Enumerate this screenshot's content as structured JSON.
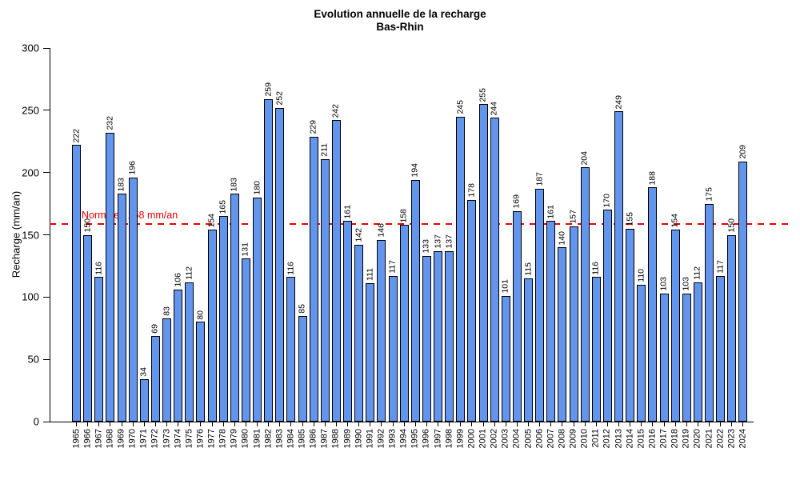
{
  "title": {
    "line1": "Evolution annuelle de la recharge",
    "line2": "Bas-Rhin"
  },
  "chart_data": {
    "type": "bar",
    "title": "Evolution annuelle de la recharge Bas-Rhin",
    "xlabel": "",
    "ylabel": "Recharge (mm/an)",
    "ylim": [
      0,
      300
    ],
    "yticks": [
      0,
      50,
      100,
      150,
      200,
      250,
      300
    ],
    "grid": false,
    "legend": null,
    "value_labels": true,
    "bar_color": "#6495ED",
    "bar_border_color": "#000000",
    "reference_line": {
      "value": 158,
      "label": "Normale : 158 mm/an",
      "color": "#E60000",
      "style": "dashed"
    },
    "categories": [
      "1965",
      "1966",
      "1967",
      "1968",
      "1969",
      "1970",
      "1971",
      "1972",
      "1973",
      "1974",
      "1975",
      "1976",
      "1977",
      "1978",
      "1979",
      "1980",
      "1981",
      "1982",
      "1983",
      "1984",
      "1985",
      "1986",
      "1987",
      "1988",
      "1989",
      "1990",
      "1991",
      "1992",
      "1993",
      "1994",
      "1995",
      "1996",
      "1997",
      "1998",
      "1999",
      "2000",
      "2001",
      "2002",
      "2003",
      "2004",
      "2005",
      "2006",
      "2007",
      "2008",
      "2009",
      "2010",
      "2011",
      "2012",
      "2013",
      "2014",
      "2015",
      "2016",
      "2017",
      "2018",
      "2019",
      "2020",
      "2021",
      "2022",
      "2023",
      "2024"
    ],
    "values": [
      222,
      150,
      116,
      232,
      183,
      196,
      34,
      69,
      83,
      106,
      112,
      80,
      154,
      165,
      183,
      131,
      180,
      259,
      252,
      116,
      85,
      229,
      211,
      242,
      161,
      142,
      111,
      146,
      117,
      158,
      194,
      133,
      137,
      137,
      245,
      178,
      255,
      244,
      101,
      169,
      115,
      187,
      161,
      140,
      157,
      204,
      116,
      170,
      249,
      155,
      110,
      188,
      103,
      154,
      103,
      112,
      175,
      117,
      150,
      209
    ]
  }
}
